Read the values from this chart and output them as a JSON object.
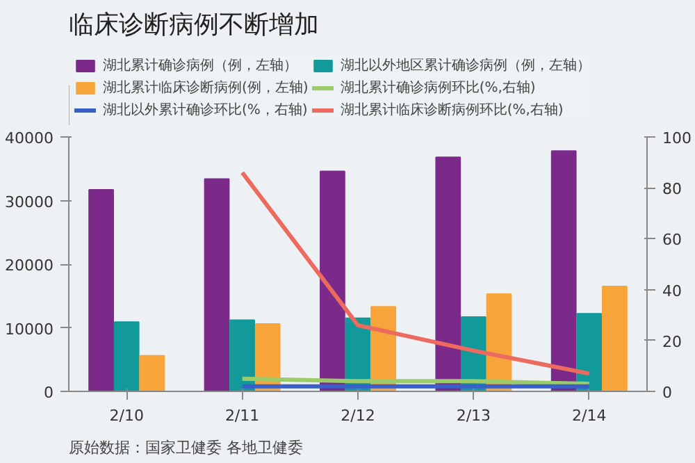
{
  "chart_data": {
    "type": "bar",
    "title": "临床诊断病例不断增加",
    "categories": [
      "2/10",
      "2/11",
      "2/12",
      "2/13",
      "2/14"
    ],
    "series": [
      {
        "name": "湖北累计确诊病例（例，左轴）",
        "color": "#7b2a8a",
        "values": [
          31700,
          33400,
          34600,
          36800,
          37800
        ]
      },
      {
        "name": "湖北以外地区累计确诊病例（例，左轴）",
        "color": "#12999a",
        "values": [
          10900,
          11200,
          11500,
          11700,
          12200
        ]
      },
      {
        "name": "湖北累计临床诊断病例(例，左轴)",
        "color": "#f7a43a",
        "values": [
          5600,
          10600,
          13300,
          15300,
          16500
        ]
      },
      {
        "name": "湖北累计确诊病例环比(%,右轴)",
        "type": "line",
        "axis": "y2",
        "color": "#9ccc6a",
        "values": [
          null,
          5,
          4,
          4,
          3
        ]
      },
      {
        "name": "湖北以外累计确诊环比(%，右轴)",
        "type": "line",
        "axis": "y2",
        "color": "#3a5fc8",
        "values": [
          null,
          2,
          2,
          2,
          2
        ]
      },
      {
        "name": "湖北累计临床诊断病例环比(%,右轴)",
        "type": "line",
        "axis": "y2",
        "color": "#ec6a5e",
        "values": [
          null,
          86,
          26,
          16,
          7
        ]
      }
    ],
    "ylim": [
      0,
      40000
    ],
    "yticks": [
      0,
      10000,
      20000,
      30000,
      40000
    ],
    "y2lim": [
      0,
      100
    ],
    "y2ticks": [
      0,
      20,
      40,
      60,
      80,
      100
    ],
    "legend": "top",
    "grid": false,
    "annotations": [
      "原始数据：国家卫健委 各地卫健委"
    ]
  }
}
